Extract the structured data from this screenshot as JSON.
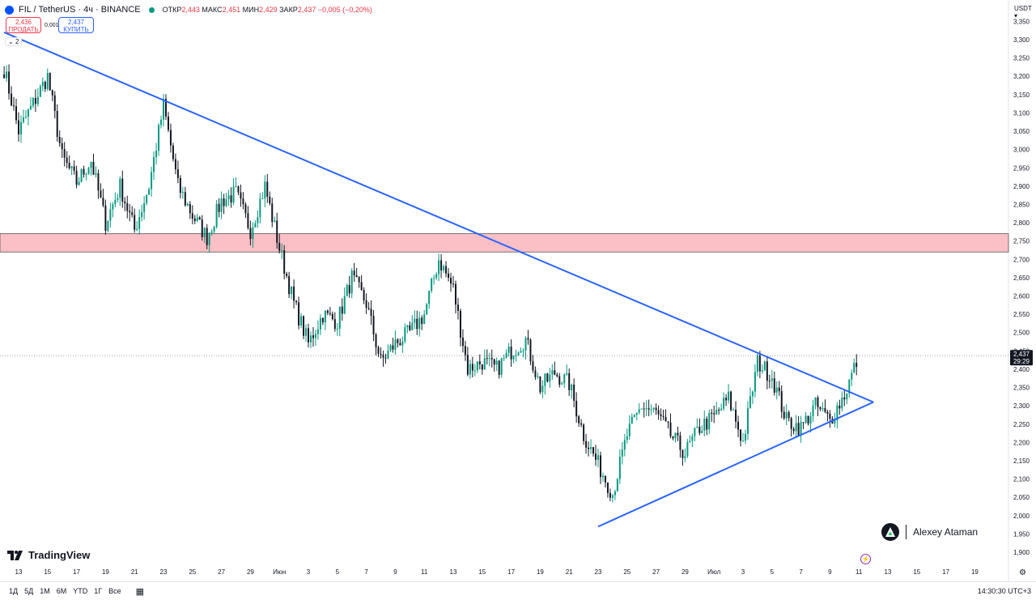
{
  "header": {
    "symbol": "FIL / TetherUS · 4ч · BINANCE",
    "ohlc": [
      {
        "label": "ОТКР",
        "value": "2,443"
      },
      {
        "label": "МАКС",
        "value": "2,451"
      },
      {
        "label": "МИН",
        "value": "2,429"
      },
      {
        "label": "ЗАКР",
        "value": "2,437"
      }
    ],
    "change": "−0,005 (−0,20%)",
    "sell_price": "2,436",
    "sell_label": "ПРОДАТЬ",
    "spread": "0,001",
    "buy_price": "2,437",
    "buy_label": "КУПИТЬ",
    "indicator_count": "2",
    "currency": "USDT"
  },
  "colors": {
    "up": "#089981",
    "down": "#131722",
    "trendline": "#2962ff",
    "zone_fill": "#f9b9bf",
    "price_label_bg": "#131722"
  },
  "branding": {
    "logo_text": "TradingView",
    "author": "Alexey Ataman"
  },
  "bottom_bar": {
    "timeframes": [
      "1Д",
      "5Д",
      "1М",
      "6М",
      "YTD",
      "1Г",
      "Все"
    ],
    "time": "14:30:30 UTC+3"
  },
  "icons": [
    "tv-logo-icon",
    "calendar-icon",
    "gear-icon",
    "lightning-icon",
    "author-logo-icon"
  ],
  "chart_data": {
    "type": "candlestick",
    "y_ticks": [
      "3,350",
      "3,300",
      "3,250",
      "3,200",
      "3,150",
      "3,100",
      "3,050",
      "3,000",
      "2,950",
      "2,900",
      "2,850",
      "2,800",
      "2,750",
      "2,700",
      "2,650",
      "2,600",
      "2,550",
      "2,500",
      "2,450",
      "2,400",
      "2,350",
      "2,300",
      "2,250",
      "2,200",
      "2,150",
      "2,100",
      "2,050",
      "2,000",
      "1,950",
      "1,900"
    ],
    "x_ticks": [
      "13",
      "15",
      "17",
      "19",
      "21",
      "23",
      "25",
      "27",
      "29",
      "Июн",
      "3",
      "5",
      "7",
      "9",
      "11",
      "13",
      "15",
      "17",
      "19",
      "21",
      "23",
      "25",
      "27",
      "29",
      "Июл",
      "3",
      "5",
      "7",
      "9",
      "11",
      "13",
      "15",
      "17",
      "19"
    ],
    "ylim": [
      1.89,
      3.36
    ],
    "last_price": "2,437",
    "countdown": "29:29",
    "resistance_zone": [
      2.72,
      2.77
    ],
    "trendlines": [
      {
        "name": "descending",
        "points": [
          {
            "x": "2024-05-12",
            "y": 3.32
          },
          {
            "x": "2024-07-11",
            "y": 2.31
          }
        ]
      },
      {
        "name": "ascending",
        "points": [
          {
            "x": "2024-06-22",
            "y": 1.97
          },
          {
            "x": "2024-07-11",
            "y": 2.31
          }
        ]
      }
    ],
    "close_path": [
      {
        "t": "2024-05-12",
        "c": 3.22
      },
      {
        "t": "2024-05-13",
        "c": 3.05
      },
      {
        "t": "2024-05-15",
        "c": 3.2
      },
      {
        "t": "2024-05-16",
        "c": 2.98
      },
      {
        "t": "2024-05-17",
        "c": 2.91
      },
      {
        "t": "2024-05-18",
        "c": 2.97
      },
      {
        "t": "2024-05-19",
        "c": 2.8
      },
      {
        "t": "2024-05-20",
        "c": 2.9
      },
      {
        "t": "2024-05-21",
        "c": 2.78
      },
      {
        "t": "2024-05-22",
        "c": 2.9
      },
      {
        "t": "2024-05-23",
        "c": 3.12
      },
      {
        "t": "2024-05-24",
        "c": 2.9
      },
      {
        "t": "2024-05-25",
        "c": 2.82
      },
      {
        "t": "2024-05-26",
        "c": 2.76
      },
      {
        "t": "2024-05-27",
        "c": 2.86
      },
      {
        "t": "2024-05-28",
        "c": 2.88
      },
      {
        "t": "2024-05-29",
        "c": 2.78
      },
      {
        "t": "2024-05-30",
        "c": 2.9
      },
      {
        "t": "2024-05-31",
        "c": 2.73
      },
      {
        "t": "2024-06-01",
        "c": 2.58
      },
      {
        "t": "2024-06-02",
        "c": 2.47
      },
      {
        "t": "2024-06-03",
        "c": 2.55
      },
      {
        "t": "2024-06-04",
        "c": 2.53
      },
      {
        "t": "2024-06-05",
        "c": 2.65
      },
      {
        "t": "2024-06-06",
        "c": 2.58
      },
      {
        "t": "2024-06-07",
        "c": 2.42
      },
      {
        "t": "2024-06-08",
        "c": 2.47
      },
      {
        "t": "2024-06-09",
        "c": 2.5
      },
      {
        "t": "2024-06-10",
        "c": 2.55
      },
      {
        "t": "2024-06-11",
        "c": 2.7
      },
      {
        "t": "2024-06-12",
        "c": 2.62
      },
      {
        "t": "2024-06-13",
        "c": 2.4
      },
      {
        "t": "2024-06-14",
        "c": 2.42
      },
      {
        "t": "2024-06-15",
        "c": 2.4
      },
      {
        "t": "2024-06-16",
        "c": 2.45
      },
      {
        "t": "2024-06-17",
        "c": 2.48
      },
      {
        "t": "2024-06-18",
        "c": 2.35
      },
      {
        "t": "2024-06-19",
        "c": 2.39
      },
      {
        "t": "2024-06-20",
        "c": 2.36
      },
      {
        "t": "2024-06-21",
        "c": 2.22
      },
      {
        "t": "2024-06-22",
        "c": 2.14
      },
      {
        "t": "2024-06-23",
        "c": 2.06
      },
      {
        "t": "2024-06-24",
        "c": 2.22
      },
      {
        "t": "2024-06-25",
        "c": 2.3
      },
      {
        "t": "2024-06-26",
        "c": 2.28
      },
      {
        "t": "2024-06-27",
        "c": 2.22
      },
      {
        "t": "2024-06-28",
        "c": 2.17
      },
      {
        "t": "2024-06-29",
        "c": 2.24
      },
      {
        "t": "2024-06-30",
        "c": 2.27
      },
      {
        "t": "2024-07-01",
        "c": 2.32
      },
      {
        "t": "2024-07-02",
        "c": 2.2
      },
      {
        "t": "2024-07-03",
        "c": 2.42
      },
      {
        "t": "2024-07-04",
        "c": 2.38
      },
      {
        "t": "2024-07-05",
        "c": 2.26
      },
      {
        "t": "2024-07-06",
        "c": 2.24
      },
      {
        "t": "2024-07-07",
        "c": 2.3
      },
      {
        "t": "2024-07-08",
        "c": 2.26
      },
      {
        "t": "2024-07-09",
        "c": 2.33
      },
      {
        "t": "2024-07-10",
        "c": 2.437
      }
    ]
  }
}
